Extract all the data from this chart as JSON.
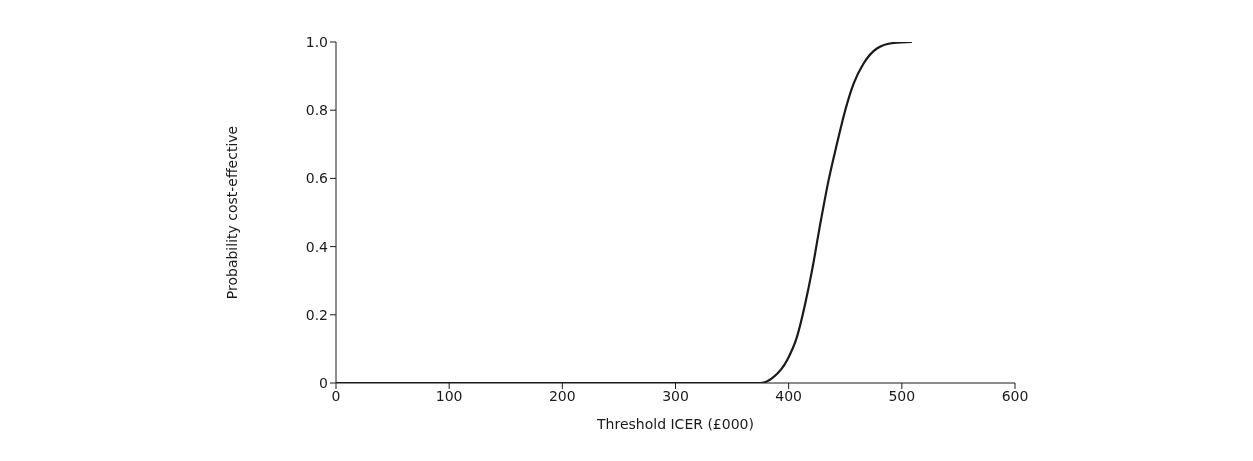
{
  "chart_data": {
    "type": "line",
    "xlabel": "Threshold ICER (£000)",
    "ylabel": "Probability cost-effective",
    "x": [
      0,
      375,
      386.8,
      398.6,
      407.4,
      414.7,
      420.7,
      428,
      435.3,
      442.7,
      450,
      457.4,
      466.2,
      478,
      492.7,
      508.9
    ],
    "series": [
      {
        "color": "#1a1a1a",
        "values": [
          0,
          0,
          0.018,
          0.067,
          0.136,
          0.234,
          0.331,
          0.468,
          0.595,
          0.702,
          0.8,
          0.878,
          0.937,
          0.981,
          0.997,
          1.0
        ]
      }
    ],
    "xlim": [
      0,
      600
    ],
    "xticks": [
      0,
      100,
      200,
      300,
      400,
      500,
      600
    ],
    "ylim": [
      0,
      1
    ],
    "yticks": [
      0,
      0.2,
      0.4,
      0.6,
      0.8,
      {
        "value": 1,
        "label": "1.0"
      }
    ],
    "grid": false,
    "legend": false,
    "marker": "none",
    "line_style": "solid"
  }
}
